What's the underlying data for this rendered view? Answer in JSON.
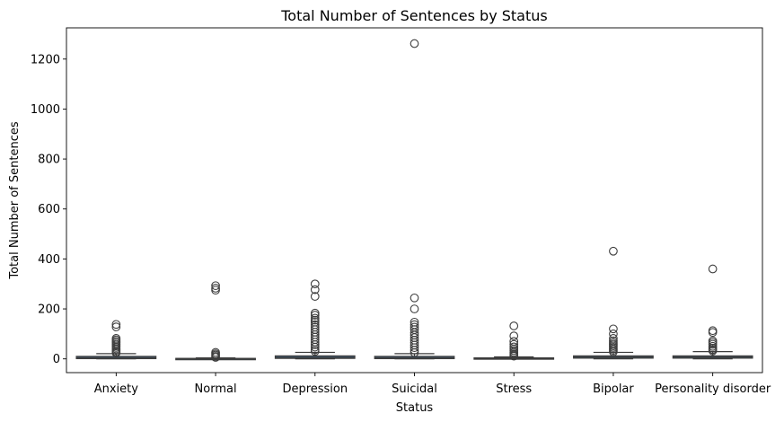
{
  "chart_data": {
    "type": "box",
    "title": "Total Number of Sentences by Status",
    "xlabel": "Status",
    "ylabel": "Total Number of Sentences",
    "ylim": [
      -55,
      1325
    ],
    "yticks": [
      0,
      200,
      400,
      600,
      800,
      1000,
      1200
    ],
    "grid": false,
    "colors": {
      "box_fill": "#3a6f9b",
      "line": "#3d3d3d",
      "frame": "#000000"
    },
    "categories": [
      "Anxiety",
      "Normal",
      "Depression",
      "Suicidal",
      "Stress",
      "Bipolar",
      "Personality disorder"
    ],
    "boxes": [
      {
        "q1": 1,
        "median": 5,
        "q3": 10,
        "whisker_low": 0,
        "whisker_high": 21,
        "outliers": [
          138,
          128,
          82,
          76,
          70,
          64,
          58,
          52,
          46,
          40,
          34,
          28,
          24
        ]
      },
      {
        "q1": 0,
        "median": 1,
        "q3": 2,
        "whisker_low": 0,
        "whisker_high": 4,
        "outliers": [
          293,
          283,
          275,
          26,
          20,
          15,
          10,
          6
        ]
      },
      {
        "q1": 2,
        "median": 6,
        "q3": 12,
        "whisker_low": 0,
        "whisker_high": 26,
        "outliers": [
          300,
          277,
          250,
          183,
          175,
          163,
          155,
          147,
          137,
          127,
          117,
          107,
          97,
          87,
          77,
          67,
          57,
          47,
          37,
          30
        ]
      },
      {
        "q1": 1,
        "median": 5,
        "q3": 10,
        "whisker_low": 0,
        "whisker_high": 21,
        "outliers": [
          1262,
          244,
          200,
          147,
          137,
          127,
          117,
          105,
          95,
          85,
          75,
          65,
          55,
          45,
          35,
          25
        ]
      },
      {
        "q1": 0,
        "median": 2,
        "q3": 4,
        "whisker_low": 0,
        "whisker_high": 8,
        "outliers": [
          132,
          92,
          70,
          58,
          48,
          40,
          33,
          26,
          20,
          15,
          11
        ]
      },
      {
        "q1": 3,
        "median": 7,
        "q3": 12,
        "whisker_low": 0,
        "whisker_high": 26,
        "outliers": [
          431,
          120,
          100,
          82,
          72,
          64,
          58,
          52,
          46,
          40,
          34,
          28
        ]
      },
      {
        "q1": 3,
        "median": 7,
        "q3": 12,
        "whisker_low": 0,
        "whisker_high": 29,
        "outliers": [
          360,
          113,
          106,
          72,
          65,
          58,
          50,
          43,
          37,
          32
        ]
      }
    ]
  }
}
